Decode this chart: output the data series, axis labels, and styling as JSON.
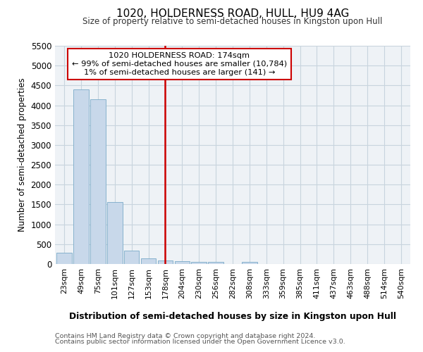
{
  "title": "1020, HOLDERNESS ROAD, HULL, HU9 4AG",
  "subtitle": "Size of property relative to semi-detached houses in Kingston upon Hull",
  "xlabel": "Distribution of semi-detached houses by size in Kingston upon Hull",
  "ylabel": "Number of semi-detached properties",
  "footnote1": "Contains HM Land Registry data © Crown copyright and database right 2024.",
  "footnote2": "Contains public sector information licensed under the Open Government Licence v3.0.",
  "annotation_title": "1020 HOLDERNESS ROAD: 174sqm",
  "annotation_line1": "← 99% of semi-detached houses are smaller (10,784)",
  "annotation_line2": "1% of semi-detached houses are larger (141) →",
  "bar_color": "#c8d8ea",
  "bar_edge_color": "#7aaac8",
  "redline_color": "#cc0000",
  "categories": [
    "23sqm",
    "49sqm",
    "75sqm",
    "101sqm",
    "127sqm",
    "153sqm",
    "178sqm",
    "204sqm",
    "230sqm",
    "256sqm",
    "282sqm",
    "308sqm",
    "333sqm",
    "359sqm",
    "385sqm",
    "411sqm",
    "437sqm",
    "463sqm",
    "488sqm",
    "514sqm",
    "540sqm"
  ],
  "values": [
    285,
    4400,
    4150,
    1560,
    330,
    140,
    90,
    70,
    58,
    55,
    2,
    55,
    0,
    0,
    0,
    0,
    0,
    0,
    0,
    0,
    0
  ],
  "ylim": [
    0,
    5500
  ],
  "yticks": [
    0,
    500,
    1000,
    1500,
    2000,
    2500,
    3000,
    3500,
    4000,
    4500,
    5000,
    5500
  ],
  "grid_color": "#c8d4de",
  "background_color": "#eef2f6",
  "redline_idx": 6
}
